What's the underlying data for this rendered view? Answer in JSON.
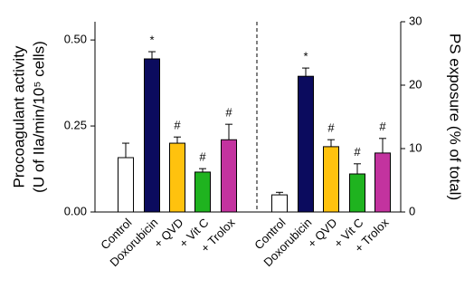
{
  "chart_data": [
    {
      "type": "bar",
      "axis_side": "left",
      "ylabel": [
        "Procoagulant activity",
        "(U of IIa/min/10⁵ cells)"
      ],
      "categories": [
        "Control",
        "Doxorubicin",
        "+ QVD",
        "+ Vit C",
        "+ Trolox"
      ],
      "values": [
        0.158,
        0.445,
        0.2,
        0.116,
        0.21
      ],
      "errors": [
        0.042,
        0.021,
        0.018,
        0.01,
        0.045
      ],
      "colors": [
        "#ffffff",
        "#0b0b5e",
        "#ffc20e",
        "#1fb31f",
        "#c3339f"
      ],
      "markers": [
        null,
        "*",
        "#",
        "#",
        "#"
      ],
      "ylim": [
        0,
        0.553
      ],
      "yticks": [
        {
          "value": 0,
          "label": "0.00"
        },
        {
          "value": 0.25,
          "label": "0.25"
        },
        {
          "value": 0.5,
          "label": "0.50"
        }
      ]
    },
    {
      "type": "bar",
      "axis_side": "right",
      "ylabel": [
        "PS exposure (% of total)"
      ],
      "categories": [
        "Control",
        "Doxorubicin",
        "+ QVD",
        "+ Vit C",
        "+ Trolox"
      ],
      "values": [
        2.7,
        21.4,
        10.3,
        6.0,
        9.3
      ],
      "errors": [
        0.4,
        1.3,
        1.1,
        1.6,
        2.3
      ],
      "colors": [
        "#ffffff",
        "#0b0b5e",
        "#ffc20e",
        "#1fb31f",
        "#c3339f"
      ],
      "markers": [
        null,
        "*",
        "#",
        "#",
        "#"
      ],
      "ylim": [
        0,
        30
      ],
      "yticks": [
        0,
        10,
        20,
        30
      ]
    }
  ]
}
